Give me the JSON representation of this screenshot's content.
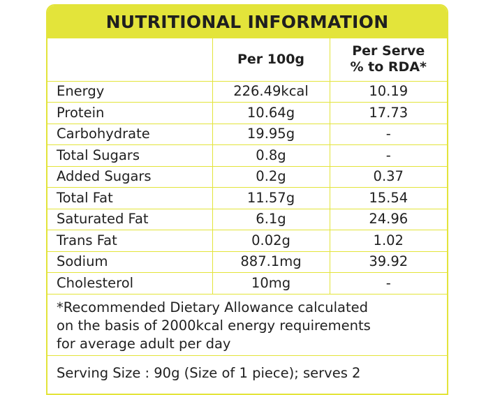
{
  "title": "NUTRITIONAL INFORMATION",
  "headers": {
    "col1": "",
    "col2": "Per 100g",
    "col3_line1": "Per Serve",
    "col3_line2": "% to RDA*"
  },
  "rows": [
    {
      "nutrient": "Energy",
      "per_100g": "226.49kcal",
      "rda": "10.19"
    },
    {
      "nutrient": "Protein",
      "per_100g": "10.64g",
      "rda": "17.73"
    },
    {
      "nutrient": "Carbohydrate",
      "per_100g": "19.95g",
      "rda": "-"
    },
    {
      "nutrient": "Total Sugars",
      "per_100g": "0.8g",
      "rda": "-"
    },
    {
      "nutrient": "Added Sugars",
      "per_100g": "0.2g",
      "rda": "0.37"
    },
    {
      "nutrient": "Total Fat",
      "per_100g": "11.57g",
      "rda": "15.54"
    },
    {
      "nutrient": "Saturated Fat",
      "per_100g": "6.1g",
      "rda": "24.96"
    },
    {
      "nutrient": "Trans Fat",
      "per_100g": "0.02g",
      "rda": "1.02"
    },
    {
      "nutrient": "Sodium",
      "per_100g": "887.1mg",
      "rda": "39.92"
    },
    {
      "nutrient": "Cholesterol",
      "per_100g": "10mg",
      "rda": "-"
    }
  ],
  "footnote_lines": [
    "*Recommended Dietary Allowance calculated",
    "on the basis of 2000kcal energy requirements",
    "for average adult per day"
  ],
  "serving_size": "Serving Size : 90g (Size of 1 piece); serves 2",
  "colors": {
    "accent": "#e3e43a",
    "text": "#1f1f1f"
  }
}
